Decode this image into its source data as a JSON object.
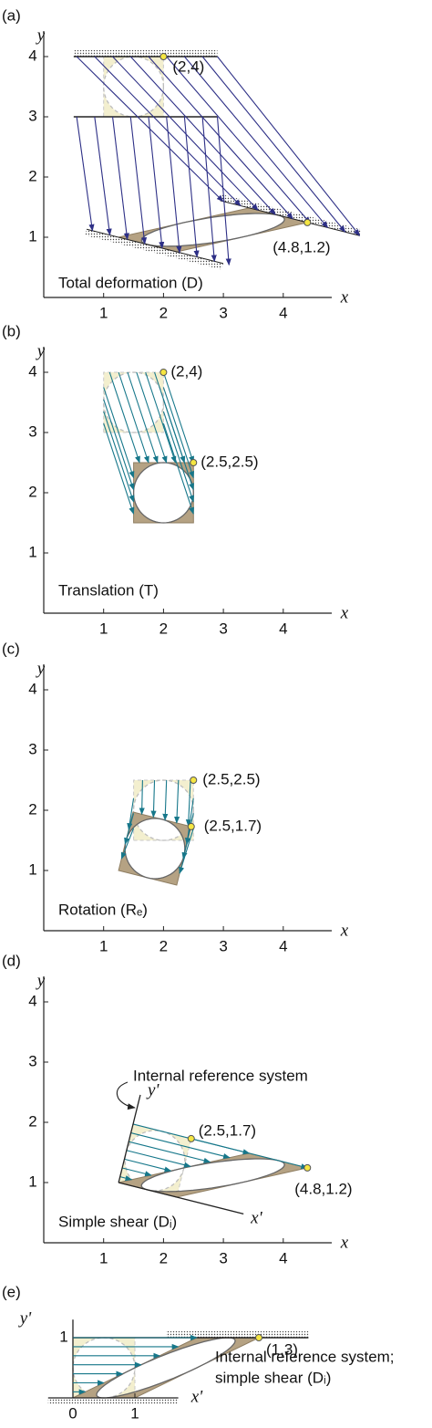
{
  "panels": [
    {
      "label": "(a)",
      "y_axis": "y",
      "x_axis": "x",
      "xticks": [
        "1",
        "2",
        "3",
        "4"
      ],
      "yticks": [
        "1",
        "2",
        "3",
        "4"
      ],
      "points": [
        "(2,4)",
        "(4.8,1.2)"
      ],
      "caption": "Total deformation (D)"
    },
    {
      "label": "(b)",
      "y_axis": "y",
      "x_axis": "x",
      "xticks": [
        "1",
        "2",
        "3",
        "4"
      ],
      "yticks": [
        "1",
        "2",
        "3",
        "4"
      ],
      "points": [
        "(2,4)",
        "(2.5,2.5)"
      ],
      "caption": "Translation (T)"
    },
    {
      "label": "(c)",
      "y_axis": "y",
      "x_axis": "x",
      "xticks": [
        "1",
        "2",
        "3",
        "4"
      ],
      "yticks": [
        "1",
        "2",
        "3",
        "4"
      ],
      "points": [
        "(2.5,2.5)",
        "(2.5,1.7)"
      ],
      "caption": "Rotation (Rₑ)"
    },
    {
      "label": "(d)",
      "y_axis": "y",
      "x_axis": "x",
      "xticks": [
        "1",
        "2",
        "3",
        "4"
      ],
      "yticks": [
        "1",
        "2",
        "3",
        "4"
      ],
      "points": [
        "(2.5,1.7)",
        "(4.8,1.2)"
      ],
      "caption": "Simple shear (Dᵢ)",
      "annotation": "Internal reference system",
      "local_x_axis": "x'",
      "local_y_axis": "y'"
    },
    {
      "label": "(e)",
      "y_axis": "y'",
      "x_axis": "x'",
      "xticks": [
        "0",
        "1"
      ],
      "yticks": [
        "1"
      ],
      "points": [
        "(1,3)"
      ],
      "caption": [
        "Internal reference system;",
        "simple shear (Dᵢ)"
      ]
    }
  ]
}
